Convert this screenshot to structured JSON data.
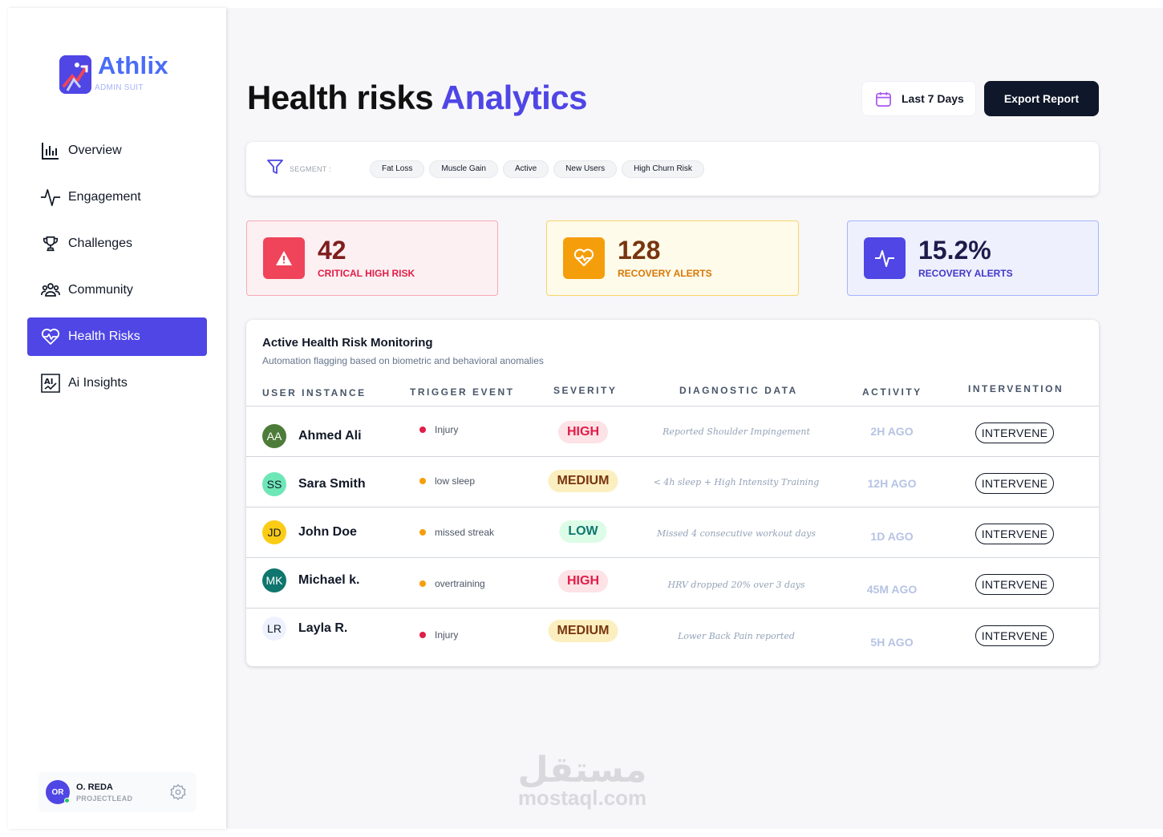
{
  "brand": {
    "name": "Athlix",
    "subtitle": "ADMIN SUIT"
  },
  "sidebar": {
    "items": [
      {
        "label": "Overview",
        "icon": "bar-chart-icon",
        "active": false
      },
      {
        "label": "Engagement",
        "icon": "activity-icon",
        "active": false
      },
      {
        "label": "Challenges",
        "icon": "trophy-icon",
        "active": false
      },
      {
        "label": "Community",
        "icon": "users-icon",
        "active": false
      },
      {
        "label": "Health Risks",
        "icon": "heart-pulse-icon",
        "active": true
      },
      {
        "label": "Ai Insights",
        "icon": "ai-icon",
        "active": false
      }
    ]
  },
  "user": {
    "initials": "OR",
    "name": "O. REDA",
    "role": "PROJECTLEAD"
  },
  "header": {
    "title_main": "Health risks",
    "title_accent": "Analytics",
    "date_range": "Last 7 Days",
    "export_label": "Export Report"
  },
  "segment": {
    "label": "SEGMENT :",
    "chips": [
      "Fat Loss",
      "Muscle Gain",
      "Active",
      "New Users",
      "High Churn Risk"
    ]
  },
  "stats": [
    {
      "value": "42",
      "label": "CRITICAL HIGH RISK",
      "icon": "alert-icon"
    },
    {
      "value": "128",
      "label": "RECOVERY ALERTS",
      "icon": "heart-icon"
    },
    {
      "value": "15.2%",
      "label": "RECOVERY ALERTS",
      "icon": "pulse-icon"
    }
  ],
  "table": {
    "title": "Active Health Risk Monitoring",
    "subtitle": "Automation flagging based on biometric and behavioral anomalies",
    "columns": [
      "USER INSTANCE",
      "TRIGGER EVENT",
      "SEVERITY",
      "DIAGNOSTIC DATA",
      "ACTIVITY",
      "INTERVENTION"
    ],
    "rows": [
      {
        "initials": "AA",
        "name": "Ahmed Ali",
        "trigger": "Injury",
        "severity": "HIGH",
        "diagnostic": "Reported Shoulder Impingement",
        "activity": "2H AGO",
        "action": "INTERVENE"
      },
      {
        "initials": "SS",
        "name": "Sara Smith",
        "trigger": "low sleep",
        "severity": "MEDIUM",
        "diagnostic": "< 4h sleep + High Intensity Training",
        "activity": "12H AGO",
        "action": "INTERVENE"
      },
      {
        "initials": "JD",
        "name": "John Doe",
        "trigger": "missed streak",
        "severity": "LOW",
        "diagnostic": "Missed 4 consecutive workout days",
        "activity": "1D AGO",
        "action": "INTERVENE"
      },
      {
        "initials": "MK",
        "name": "Michael k.",
        "trigger": "overtraining",
        "severity": "HIGH",
        "diagnostic": "HRV dropped 20% over 3 days",
        "activity": "45M AGO",
        "action": "INTERVENE"
      },
      {
        "initials": "LR",
        "name": "Layla R.",
        "trigger": "Injury",
        "severity": "MEDIUM",
        "diagnostic": "Lower Back Pain reported",
        "activity": "5H AGO",
        "action": "INTERVENE"
      }
    ]
  },
  "watermark": {
    "arabic": "مستقل",
    "latin": "mostaql.com"
  },
  "colors": {
    "accent": "#4f46e5",
    "critical": "#ef4459",
    "warning": "#f59e0b",
    "dark": "#0f172a"
  }
}
